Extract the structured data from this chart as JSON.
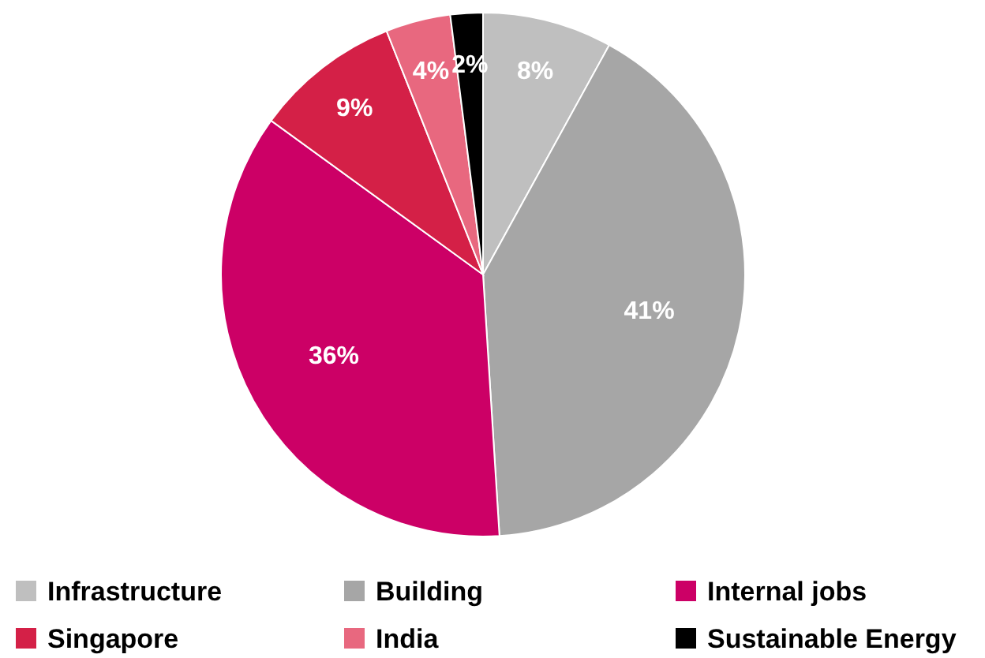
{
  "chart_data": {
    "type": "pie",
    "categories": [
      "Infrastructure",
      "Building",
      "Internal jobs",
      "Singapore",
      "India",
      "Sustainable Energy"
    ],
    "values": [
      8,
      41,
      36,
      9,
      4,
      2
    ],
    "colors": [
      "#bfbfbf",
      "#a6a6a6",
      "#cc0066",
      "#d42047",
      "#e8687f",
      "#000000"
    ],
    "value_labels": [
      "8%",
      "41%",
      "36%",
      "9%",
      "4%",
      "2%"
    ],
    "legend": "bottom"
  }
}
